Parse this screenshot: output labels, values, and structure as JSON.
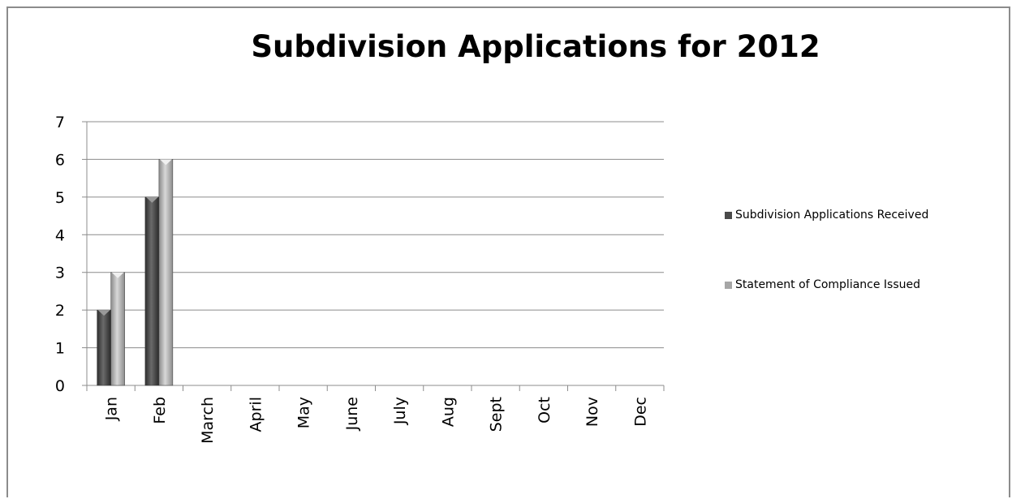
{
  "chart_data": {
    "type": "bar",
    "title": "Subdivision Applications for 2012",
    "xlabel": "",
    "ylabel": "",
    "categories": [
      "Jan",
      "Feb",
      "March",
      "April",
      "May",
      "June",
      "July",
      "Aug",
      "Sept",
      "Oct",
      "Nov",
      "Dec"
    ],
    "series": [
      {
        "name": "Subdivision Applications Received",
        "values": [
          2,
          5,
          null,
          null,
          null,
          null,
          null,
          null,
          null,
          null,
          null,
          null
        ],
        "color": "#4a4a4a"
      },
      {
        "name": "Statement of Compliance Issued",
        "values": [
          3,
          6,
          null,
          null,
          null,
          null,
          null,
          null,
          null,
          null,
          null,
          null
        ],
        "color": "#a6a6a6"
      }
    ],
    "ylim": [
      0,
      7
    ],
    "yticks": [
      0,
      1,
      2,
      3,
      4,
      5,
      6,
      7
    ],
    "grid": true,
    "legend_position": "right"
  }
}
